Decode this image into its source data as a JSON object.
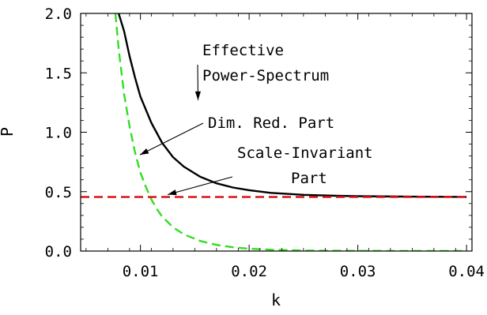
{
  "chart_data": {
    "type": "line",
    "xlabel": "k",
    "ylabel": "P",
    "xlim": [
      0.0045,
      0.0405
    ],
    "ylim": [
      0,
      2.0
    ],
    "xticks": [
      {
        "value": 0.01,
        "label": "0.01"
      },
      {
        "value": 0.02,
        "label": "0.02"
      },
      {
        "value": 0.03,
        "label": "0.03"
      },
      {
        "value": 0.04,
        "label": "0.04"
      }
    ],
    "yticks": [
      {
        "value": 0.0,
        "label": "0.0"
      },
      {
        "value": 0.5,
        "label": "0.5"
      },
      {
        "value": 1.0,
        "label": "1.0"
      },
      {
        "value": 1.5,
        "label": "1.5"
      },
      {
        "value": 2.0,
        "label": "2.0"
      }
    ],
    "grid": false,
    "legend": "none",
    "series": [
      {
        "color": "#000000",
        "dash": "solid",
        "x": [
          0.008,
          0.0085,
          0.009,
          0.0095,
          0.01,
          0.011,
          0.012,
          0.013,
          0.014,
          0.0155,
          0.017,
          0.0185,
          0.02,
          0.022,
          0.025,
          0.028,
          0.03,
          0.035,
          0.04
        ],
        "y": [
          2.0,
          1.85,
          1.64,
          1.46,
          1.3,
          1.08,
          0.91,
          0.79,
          0.71,
          0.625,
          0.57,
          0.535,
          0.512,
          0.49,
          0.473,
          0.465,
          0.462,
          0.458,
          0.456
        ]
      },
      {
        "color": "#33dd22",
        "dash": "dashed",
        "x": [
          0.0077,
          0.008,
          0.0085,
          0.009,
          0.0095,
          0.01,
          0.0105,
          0.011,
          0.0115,
          0.012,
          0.013,
          0.014,
          0.0155,
          0.017,
          0.0185,
          0.02,
          0.022,
          0.025,
          0.03,
          0.035,
          0.04
        ],
        "y": [
          2.0,
          1.7,
          1.32,
          1.05,
          0.83,
          0.66,
          0.54,
          0.435,
          0.355,
          0.29,
          0.2,
          0.14,
          0.085,
          0.052,
          0.032,
          0.02,
          0.011,
          0.004,
          0.001,
          0.0,
          0.0
        ]
      },
      {
        "color": "#dd1111",
        "dash": "dashed",
        "x": [
          0.0045,
          0.04
        ],
        "y": [
          0.455,
          0.455
        ]
      }
    ],
    "annotations": [
      {
        "lines": [
          "Effective",
          "Power-Spectrum"
        ],
        "arrow_to": [
          0.0153,
          1.27
        ]
      },
      {
        "lines": [
          "Dim. Red. Part"
        ],
        "arrow_to": [
          0.00995,
          0.81
        ]
      },
      {
        "lines": [
          "Scale-Invariant",
          "Part"
        ],
        "arrow_to": [
          0.0125,
          0.475
        ]
      }
    ]
  }
}
